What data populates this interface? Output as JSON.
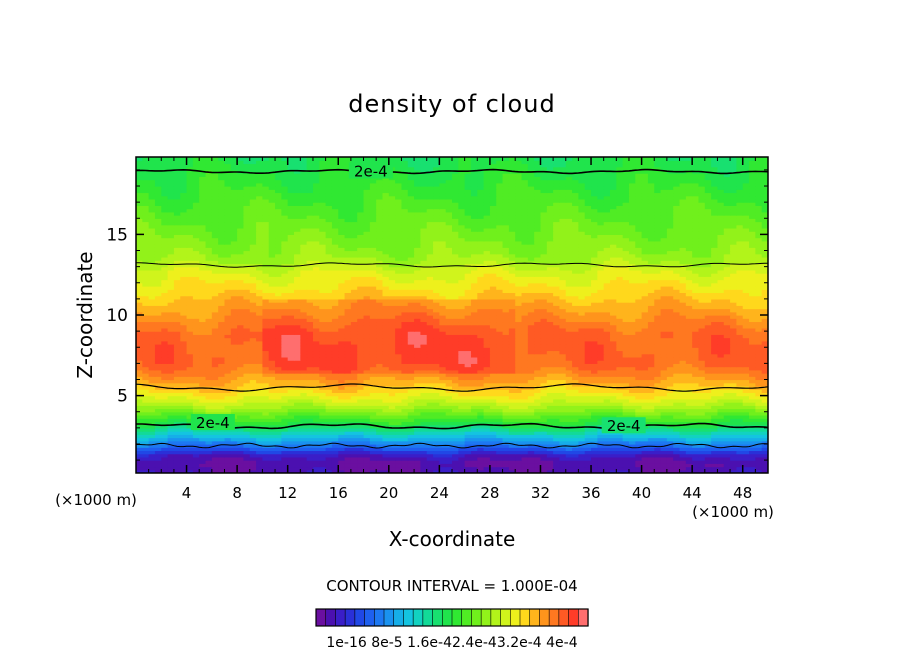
{
  "chart_data": {
    "type": "heatmap",
    "title": "density of cloud",
    "xlabel": "X-coordinate",
    "ylabel": "Z-coordinate",
    "x_unit": "(×1000 m)",
    "xlim": [
      0,
      50
    ],
    "ylim": [
      0.2,
      19.8
    ],
    "x_ticks": [
      "4",
      "8",
      "12",
      "16",
      "20",
      "24",
      "28",
      "32",
      "36",
      "40",
      "44",
      "48"
    ],
    "x_tick_values": [
      4,
      8,
      12,
      16,
      20,
      24,
      28,
      32,
      36,
      40,
      44,
      48
    ],
    "y_ticks": [
      "5",
      "10",
      "15"
    ],
    "y_tick_values": [
      5,
      10,
      15
    ],
    "contour_interval_text": "CONTOUR INTERVAL = 1.000E-04",
    "contour_labels": [
      {
        "text": "2e-4",
        "x": 17.0,
        "z": 18.9
      },
      {
        "text": "2e-4",
        "x": 4.5,
        "z": 3.3
      },
      {
        "text": "2e-4",
        "x": 37.0,
        "z": 3.1
      }
    ],
    "colorbar": {
      "min": 1e-16,
      "max": 0.0004,
      "n_levels": 28,
      "tick_labels": [
        "1e-16",
        "8e-5",
        "1.6e-4",
        "2.4e-4",
        "3.2e-4",
        "4e-4"
      ],
      "label_strip": "1e-16 8e-5 1.6e-42.4e-43.2e-4 4e-4",
      "colors": [
        "#6a0fa0",
        "#4b10b0",
        "#3a1ec8",
        "#2a30d8",
        "#2048e6",
        "#1e60ef",
        "#1d78f2",
        "#1a92ef",
        "#16aee8",
        "#14c4e0",
        "#12d2c0",
        "#12da98",
        "#18e070",
        "#20e44c",
        "#30e832",
        "#50ec24",
        "#70f01c",
        "#92f21a",
        "#b2f41a",
        "#d0f41c",
        "#eef01c",
        "#ffd81c",
        "#ffb41c",
        "#ff941c",
        "#ff7820",
        "#ff5a24",
        "#ff3c28",
        "#ff6e6e"
      ]
    },
    "profile": {
      "z": [
        0.3,
        0.8,
        1.3,
        1.8,
        2.3,
        2.8,
        3.3,
        3.8,
        4.3,
        4.8,
        5.3,
        5.8,
        6.3,
        6.8,
        7.3,
        7.8,
        8.3,
        8.8,
        9.3,
        9.8,
        10.3,
        10.8,
        11.3,
        11.8,
        12.3,
        12.8,
        13.3,
        13.8,
        14.3,
        14.8,
        15.3,
        15.8,
        16.3,
        16.8,
        17.3,
        17.8,
        18.3,
        18.8,
        19.3,
        19.8
      ],
      "density": [
        2e-05,
        1e-05,
        3e-05,
        8e-05,
        0.00012,
        0.00016,
        0.0002,
        0.00023,
        0.00026,
        0.000285,
        0.000305,
        0.000325,
        0.00034,
        0.000355,
        0.00036,
        0.00036,
        0.00036,
        0.000358,
        0.00035,
        0.00034,
        0.00033,
        0.00032,
        0.00031,
        0.0003,
        0.00029,
        0.00028,
        0.00026,
        0.00025,
        0.000245,
        0.00024,
        0.000235,
        0.00023,
        0.000225,
        0.00022,
        0.000215,
        0.00021,
        0.000205,
        0.0002,
        0.000195,
        0.00019
      ]
    }
  }
}
